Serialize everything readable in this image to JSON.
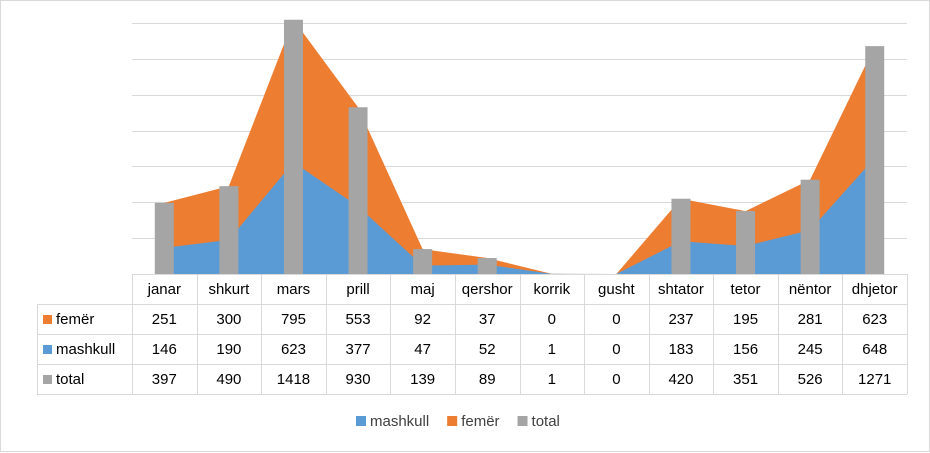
{
  "chart_data": {
    "type": "area",
    "categories": [
      "janar",
      "shkurt",
      "mars",
      "prill",
      "maj",
      "qershor",
      "korrik",
      "gusht",
      "shtator",
      "tetor",
      "nëntor",
      "dhjetor"
    ],
    "series": [
      {
        "name": "femër",
        "type": "area",
        "stacked": true,
        "color": "#ed7d31",
        "values": [
          251,
          300,
          795,
          553,
          92,
          37,
          0,
          0,
          237,
          195,
          281,
          623
        ]
      },
      {
        "name": "mashkull",
        "type": "area",
        "stacked": true,
        "color": "#5b9bd5",
        "values": [
          146,
          190,
          623,
          377,
          47,
          52,
          1,
          0,
          183,
          156,
          245,
          648
        ]
      },
      {
        "name": "total",
        "type": "bar",
        "color": "#a5a5a5",
        "values": [
          397,
          490,
          1418,
          930,
          139,
          89,
          1,
          0,
          420,
          351,
          526,
          1271
        ]
      }
    ],
    "table_rows": [
      "femër",
      "mashkull",
      "total"
    ],
    "legend": [
      "mashkull",
      "femër",
      "total"
    ],
    "legend_position": "bottom",
    "ylim": [
      0,
      1400
    ],
    "gridlines": true,
    "title": "",
    "xlabel": "",
    "ylabel": ""
  }
}
